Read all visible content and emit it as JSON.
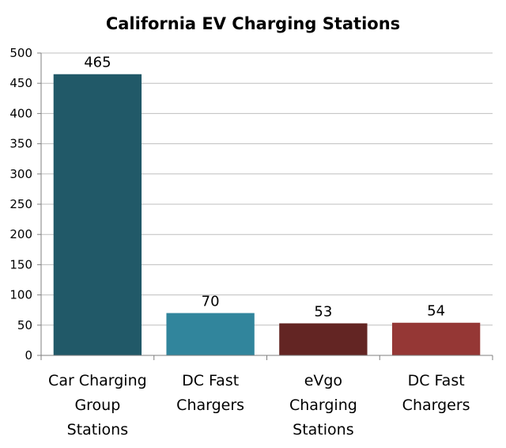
{
  "chart_data": {
    "type": "bar",
    "title": "California EV Charging Stations",
    "xlabel": "",
    "ylabel": "",
    "categories": [
      [
        "Car Charging",
        "Group",
        "Stations"
      ],
      [
        "DC Fast",
        "Chargers"
      ],
      [
        "eVgo",
        "Charging",
        "Stations"
      ],
      [
        "DC Fast",
        "Chargers"
      ]
    ],
    "values": [
      465,
      70,
      53,
      54
    ],
    "data_labels": [
      "465",
      "70",
      "53",
      "54"
    ],
    "colors": [
      "#215968",
      "#31859c",
      "#632523",
      "#953735"
    ],
    "ylim": [
      0,
      500
    ],
    "yticks": [
      0,
      50,
      100,
      150,
      200,
      250,
      300,
      350,
      400,
      450,
      500
    ],
    "grid": true,
    "legend": "none"
  }
}
